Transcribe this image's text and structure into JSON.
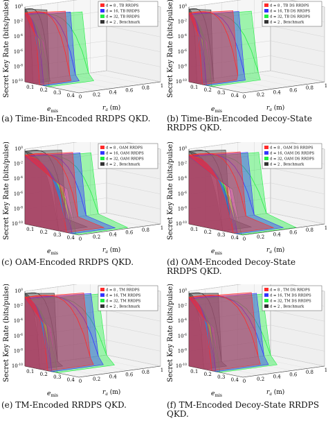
{
  "figure": {
    "ylabel": "Secret Key Rate (bits/pulse)",
    "xlabel_emis": "e",
    "xlabel_emis_sub": "mis",
    "xlabel_ra": "r",
    "xlabel_ra_sub": "a",
    "xlabel_ra_unit": " (m)",
    "yticks": [
      "10",
      "10",
      "10",
      "10",
      "10",
      "10"
    ],
    "ytick_exps": [
      "0",
      "-2",
      "-4",
      "-6",
      "-8",
      "-10"
    ],
    "emis_ticks": [
      "0.1",
      "0.2",
      "0.3",
      "0.4"
    ],
    "ra_ticks": [
      "0",
      "0.2",
      "0.4",
      "0.6",
      "0.8",
      "1"
    ],
    "colors": {
      "d8": "#ff2a2a",
      "d16": "#3434ff",
      "d32": "#22ee44",
      "bench": "#333333"
    }
  },
  "chart_data": [
    {
      "type": "area",
      "id": "a",
      "caption": [
        "(a) Time-Bin-Encoded RRDPS QKD."
      ],
      "series": [
        {
          "name": "d = 8 , TB RRDPS"
        },
        {
          "name": "d = 16, TB RRDPS"
        },
        {
          "name": "d = 32, TB RRDPS"
        },
        {
          "name": "d = 2 , Benchmark"
        }
      ],
      "zlim": [
        1e-10,
        1
      ],
      "xlim": [
        0,
        1
      ],
      "emis_lim": [
        0.05,
        0.45
      ]
    },
    {
      "type": "area",
      "id": "b",
      "caption": [
        "(b)    Time-Bin-Encoded    Decoy-State",
        "RRDPS QKD."
      ],
      "series": [
        {
          "name": "d = 8 , TB DS RRDPS"
        },
        {
          "name": "d = 16, TB DS RRDPS"
        },
        {
          "name": "d = 32, TB DS RRDPS"
        },
        {
          "name": "d = 2 , Benchmark"
        }
      ],
      "zlim": [
        1e-10,
        1
      ],
      "xlim": [
        0,
        1
      ],
      "emis_lim": [
        0.05,
        0.45
      ]
    },
    {
      "type": "area",
      "id": "c",
      "caption": [
        "(c) OAM-Encoded RRDPS QKD."
      ],
      "series": [
        {
          "name": "d = 8 , OAM RRDPS"
        },
        {
          "name": "d = 16, OAM RRDPS"
        },
        {
          "name": "d = 32, OAM RRDPS"
        },
        {
          "name": "d = 2 , Benchmark"
        }
      ],
      "zlim": [
        1e-10,
        1
      ],
      "xlim": [
        0,
        1
      ],
      "emis_lim": [
        0.05,
        0.45
      ]
    },
    {
      "type": "area",
      "id": "d",
      "caption": [
        "(d)     OAM-Encoded     Decoy-State",
        "RRDPS QKD."
      ],
      "series": [
        {
          "name": "d = 8 , OAM DS RRDPS"
        },
        {
          "name": "d = 16, OAM DS RRDPS"
        },
        {
          "name": "d = 32, OAM DS RRDPS"
        },
        {
          "name": "d = 2 , Benchmark"
        }
      ],
      "zlim": [
        1e-10,
        1
      ],
      "xlim": [
        0,
        1
      ],
      "emis_lim": [
        0.05,
        0.45
      ]
    },
    {
      "type": "area",
      "id": "e",
      "caption": [
        "(e) TM-Encoded RRDPS QKD."
      ],
      "series": [
        {
          "name": "d = 8 , TM RRDPS"
        },
        {
          "name": "d = 16, TM RRDPS"
        },
        {
          "name": "d = 32, TM RRDPS"
        },
        {
          "name": "d = 2 , Benchmark"
        }
      ],
      "zlim": [
        1e-10,
        1
      ],
      "xlim": [
        0,
        1
      ],
      "emis_lim": [
        0.05,
        0.45
      ]
    },
    {
      "type": "area",
      "id": "f",
      "caption": [
        "(f) TM-Encoded Decoy-State RRDPS",
        "QKD."
      ],
      "series": [
        {
          "name": "d = 8 , TM DS RRDPS"
        },
        {
          "name": "d = 16, TM DS RRDPS"
        },
        {
          "name": "d = 32, TM DS RRDPS"
        },
        {
          "name": "d = 2 , Benchmark"
        }
      ],
      "zlim": [
        1e-10,
        1
      ],
      "xlim": [
        0,
        1
      ],
      "emis_lim": [
        0.05,
        0.45
      ]
    }
  ]
}
